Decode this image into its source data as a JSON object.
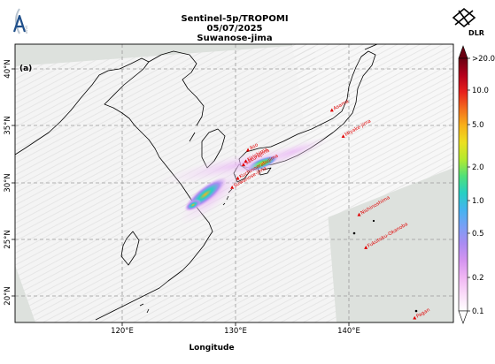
{
  "title": {
    "line1": "Sentinel-5p/TROPOMI",
    "line2": "05/07/2025",
    "line3": "Suwanose-jima"
  },
  "panel_label": "(a)",
  "logo_left": "AVUS",
  "logo_right": "DLR",
  "x_axis": {
    "label": "Longitude",
    "ticks": [
      "120°E",
      "130°E",
      "140°E"
    ]
  },
  "y_axis": {
    "ticks": [
      "40°N",
      "35°N",
      "30°N",
      "25°N",
      "20°N"
    ]
  },
  "colorbar": {
    "ticks": [
      ">20.0",
      "10.0",
      "5.0",
      "2.0",
      "1.0",
      "0.5",
      "0.2",
      "0.1"
    ],
    "colors": [
      "#6a0012",
      "#b4001c",
      "#e8201c",
      "#f36d1d",
      "#f8b21a",
      "#ece022",
      "#b3ea2f",
      "#4fe07a",
      "#27cfc3",
      "#45b3f0",
      "#7a9ff5",
      "#aa8cf2",
      "#d494ef",
      "#f0b6f3",
      "#fadcf9",
      "#ffffff"
    ]
  },
  "volcanoes": [
    {
      "name": "Asama",
      "lon": 138.5,
      "lat": 36.4
    },
    {
      "name": "Miyake-jima",
      "lon": 139.5,
      "lat": 34.1
    },
    {
      "name": "Aso",
      "lon": 131.1,
      "lat": 32.9
    },
    {
      "name": "Kirishima",
      "lon": 130.9,
      "lat": 31.9
    },
    {
      "name": "Sakurajima",
      "lon": 130.7,
      "lat": 31.6
    },
    {
      "name": "Kuchinoerabujima",
      "lon": 130.2,
      "lat": 30.4
    },
    {
      "name": "Suwanose-jima",
      "lon": 129.7,
      "lat": 29.6
    },
    {
      "name": "Nishinoshima",
      "lon": 140.9,
      "lat": 27.2
    },
    {
      "name": "Fukutoku-Okanoba",
      "lon": 141.5,
      "lat": 24.3
    },
    {
      "name": "Pagan",
      "lon": 145.8,
      "lat": 18.1
    }
  ]
}
